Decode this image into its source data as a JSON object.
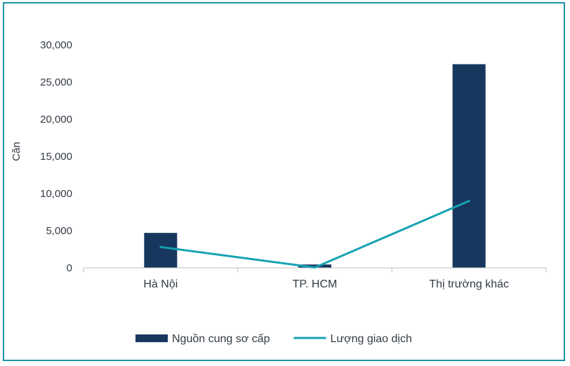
{
  "chart_data": {
    "type": "bar",
    "categories": [
      "Hà Nội",
      "TP. HCM",
      "Thị trường khác"
    ],
    "series": [
      {
        "name": "Nguồn cung sơ cấp",
        "type": "bar",
        "color": "#17375e",
        "values": [
          4700,
          450,
          27400
        ]
      },
      {
        "name": "Lượng giao dịch",
        "type": "line",
        "color": "#17a2b3",
        "values": [
          2800,
          50,
          9000
        ]
      }
    ],
    "ylabel": "Căn",
    "ylim": [
      0,
      30000
    ],
    "yticks": [
      "0",
      "5,000",
      "10,000",
      "15,000",
      "20,000",
      "25,000",
      "30,000"
    ],
    "ytick_values": [
      0,
      5000,
      10000,
      15000,
      20000,
      25000,
      30000
    ],
    "grid": false,
    "legend": "bottom"
  }
}
